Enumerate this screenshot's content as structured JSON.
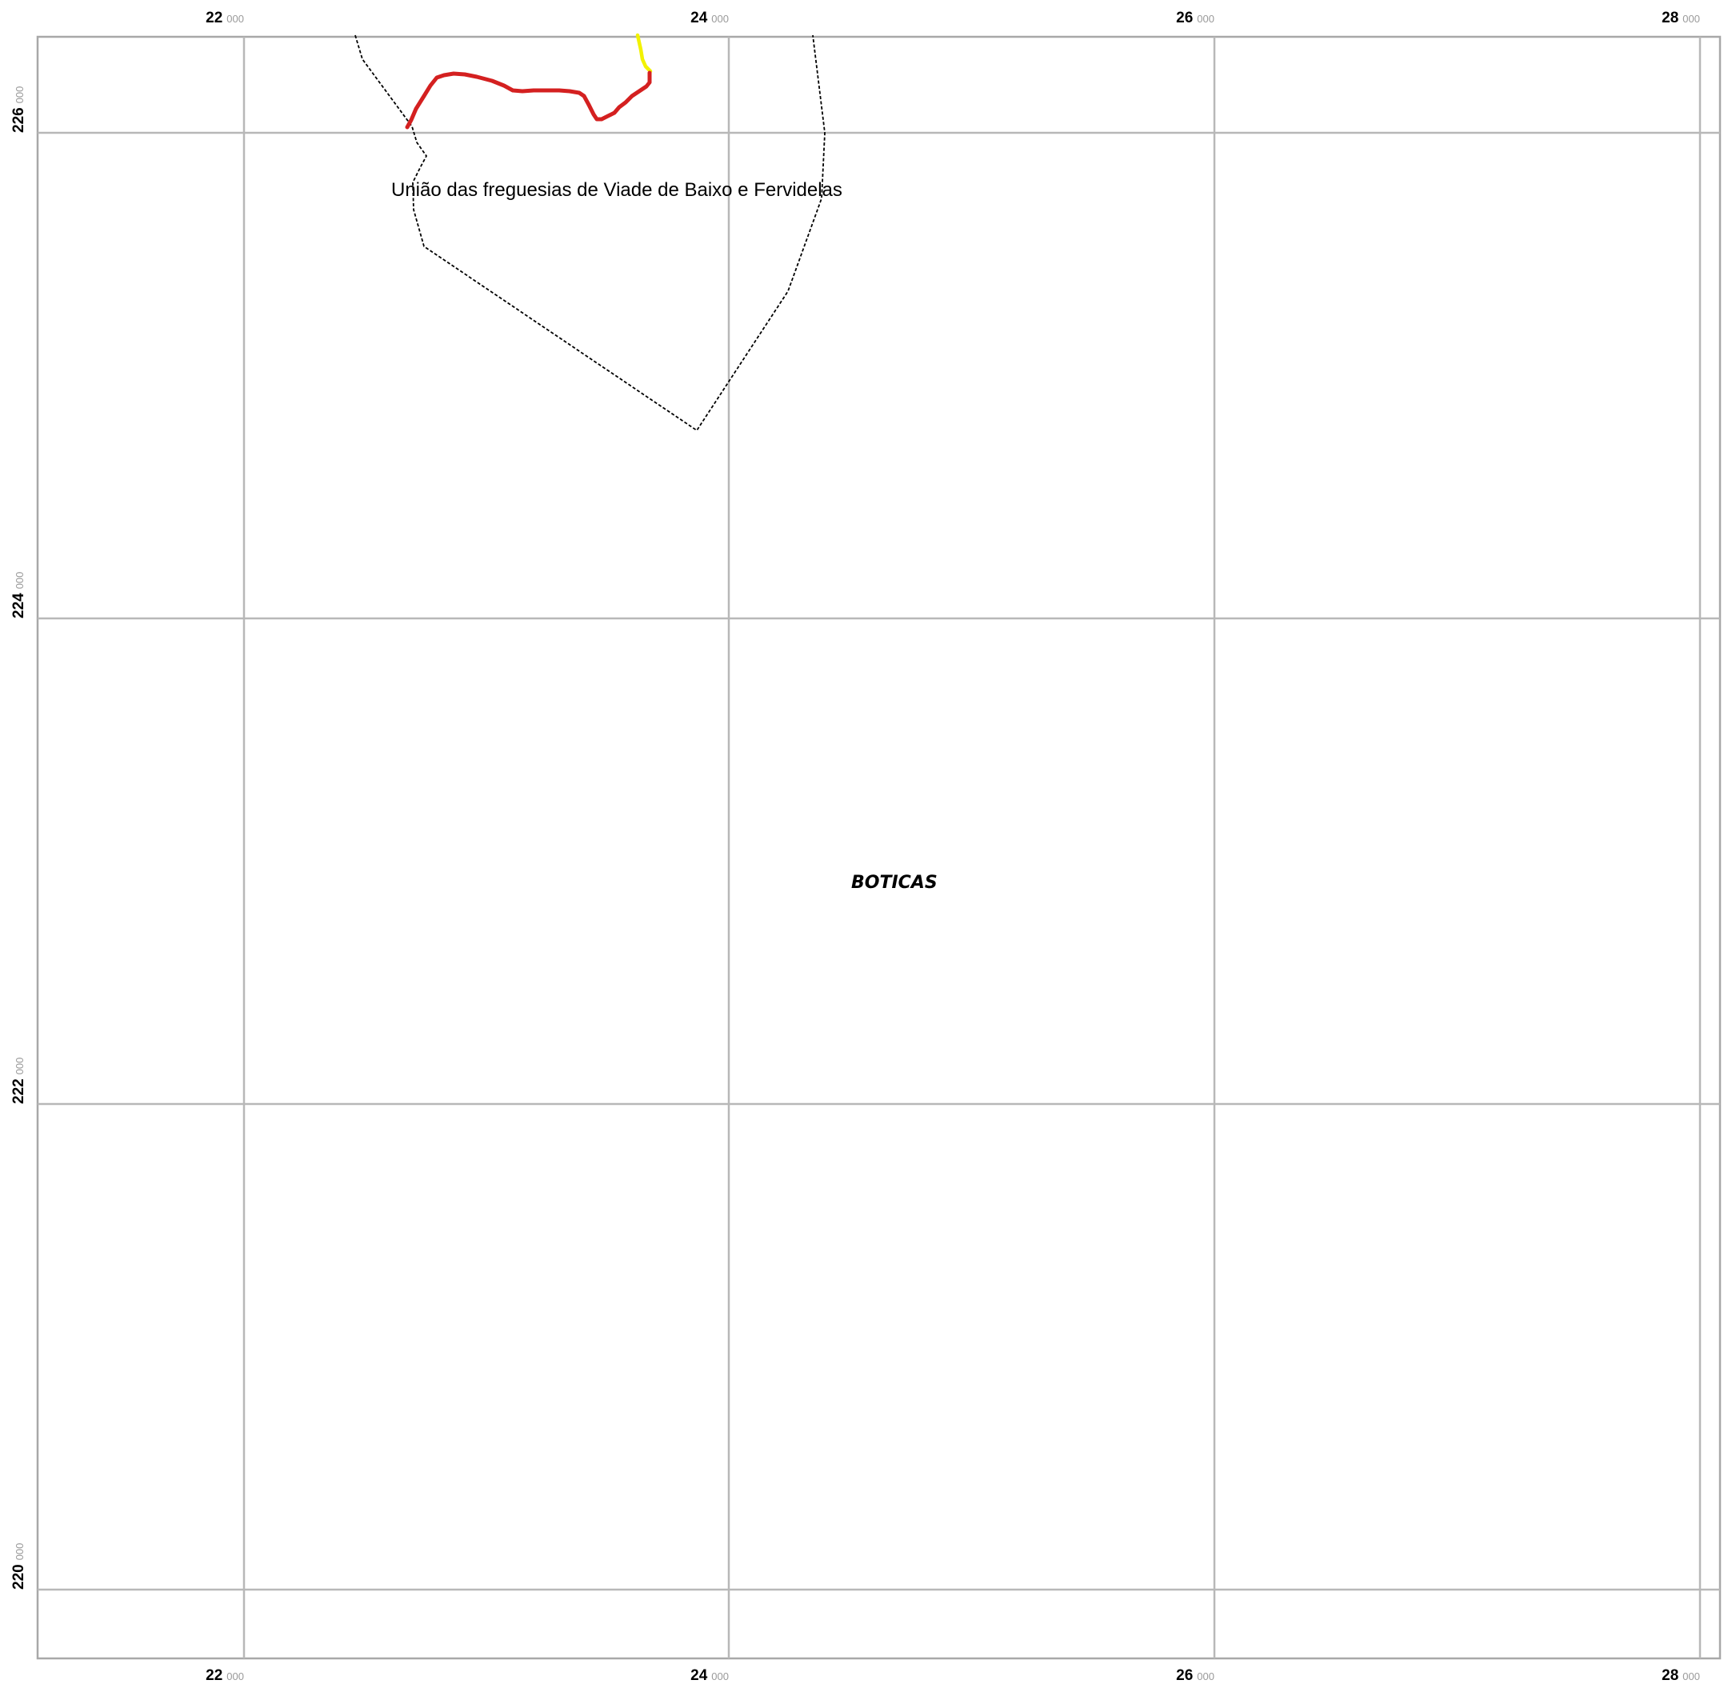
{
  "map": {
    "labels": {
      "parish": "União das freguesias de Viade de Baixo e Fervidelas",
      "municipality": "BOTICAS"
    },
    "grid": {
      "x_ticks": [
        {
          "major": "22",
          "minor": "000"
        },
        {
          "major": "24",
          "minor": "000"
        },
        {
          "major": "26",
          "minor": "000"
        },
        {
          "major": "28",
          "minor": "000"
        }
      ],
      "y_ticks": [
        {
          "major": "226",
          "minor": "000"
        },
        {
          "major": "224",
          "minor": "000"
        },
        {
          "major": "222",
          "minor": "000"
        },
        {
          "major": "220",
          "minor": "000"
        }
      ]
    },
    "colors": {
      "grid": "#b8b8b8",
      "frame": "#a8a8a8",
      "boundary": "#000000",
      "route_red": "#d42020",
      "route_yellow": "#f2f200"
    }
  }
}
